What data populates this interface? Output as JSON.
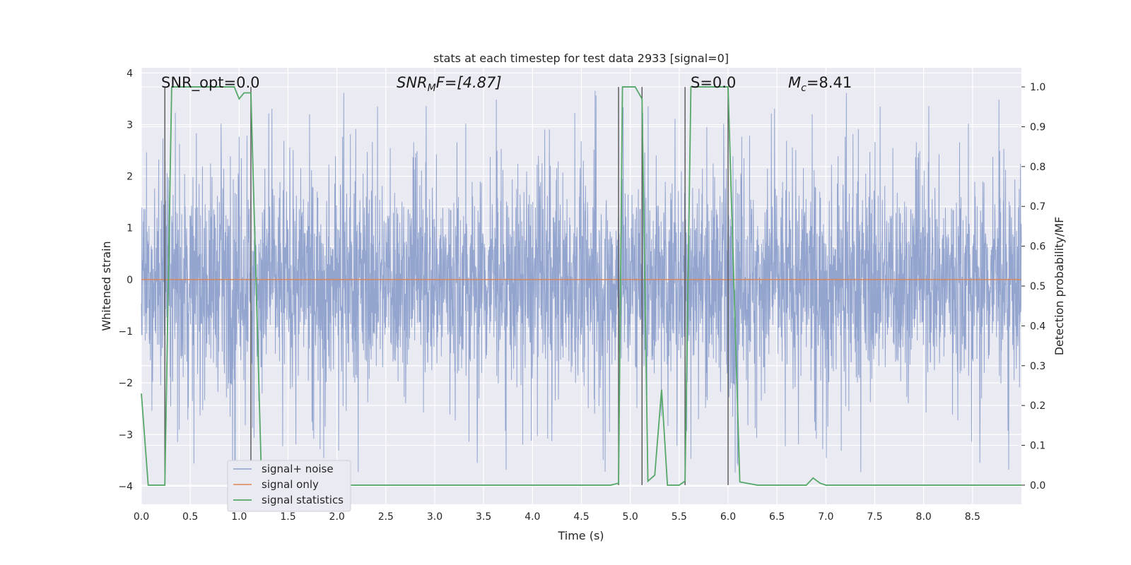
{
  "chart_data": {
    "type": "line",
    "title": "stats at each timestep for test data 2933 [signal=0]",
    "xlabel": "Time (s)",
    "ylabel": "Whitened strain",
    "y2label": "Detection probability/MF",
    "xlim": [
      0.0,
      9.0
    ],
    "ylim": [
      -4.35,
      4.1
    ],
    "y2lim": [
      -0.048,
      1.048
    ],
    "xticks": [
      "0.0",
      "0.5",
      "1.0",
      "1.5",
      "2.0",
      "2.5",
      "3.0",
      "3.5",
      "4.0",
      "4.5",
      "5.0",
      "5.5",
      "6.0",
      "6.5",
      "7.0",
      "7.5",
      "8.0",
      "8.5"
    ],
    "yticks": [
      "4",
      "3",
      "2",
      "1",
      "0",
      "−1",
      "−2",
      "−3",
      "−4"
    ],
    "y2ticks": [
      "1.0",
      "0.9",
      "0.8",
      "0.7",
      "0.6",
      "0.5",
      "0.4",
      "0.3",
      "0.2",
      "0.1",
      "0.0"
    ],
    "grid": true,
    "legend_position": "lower-left",
    "annotations": {
      "snr_opt": "SNR_opt=0.0",
      "snr_mf_label": "SNR",
      "snr_mf_sub": "M",
      "snr_mf_value": "F=[4.87]",
      "s_label": "S=0.0",
      "mc_label": "M",
      "mc_sub": "c",
      "mc_value": "=8.41"
    },
    "colors": {
      "noise": "#8ea1cc",
      "signal": "#dd8452",
      "stats": "#55a868",
      "vline": "#555555",
      "plot_bg": "#eaeaf2",
      "grid": "#ffffff"
    },
    "series": [
      {
        "name": "signal+ noise",
        "description_values": "whitened noise time series, amplitude mostly within [-2, 2], excursions to about ±3.7",
        "amplitude_bulk": 1.4,
        "amplitude_peak": 3.75
      },
      {
        "name": "signal only",
        "values_constant": 0.0
      },
      {
        "name": "signal statistics",
        "x": [
          0.0,
          0.07,
          0.24,
          0.31,
          0.5,
          0.7,
          0.95,
          1.0,
          1.05,
          1.12,
          1.23,
          1.3,
          4.8,
          4.88,
          4.92,
          5.05,
          5.12,
          5.18,
          5.25,
          5.32,
          5.38,
          5.5,
          5.56,
          5.62,
          6.0,
          6.12,
          6.3,
          6.8,
          6.87,
          6.94,
          7.0,
          9.0
        ],
        "y": [
          0.23,
          0.0,
          0.0,
          1.0,
          1.0,
          1.0,
          1.0,
          0.97,
          0.985,
          0.985,
          0.0,
          0.0,
          0.0,
          0.005,
          1.0,
          1.0,
          0.97,
          0.01,
          0.025,
          0.24,
          0.0,
          0.0,
          0.01,
          1.0,
          1.0,
          0.008,
          0.0,
          0.0,
          0.018,
          0.005,
          0.0,
          0.0
        ]
      }
    ],
    "vertical_lines_x": [
      0.24,
      1.12,
      4.88,
      5.12,
      5.56,
      6.0
    ],
    "legend": [
      "signal+ noise",
      "signal only",
      "signal statistics"
    ]
  }
}
